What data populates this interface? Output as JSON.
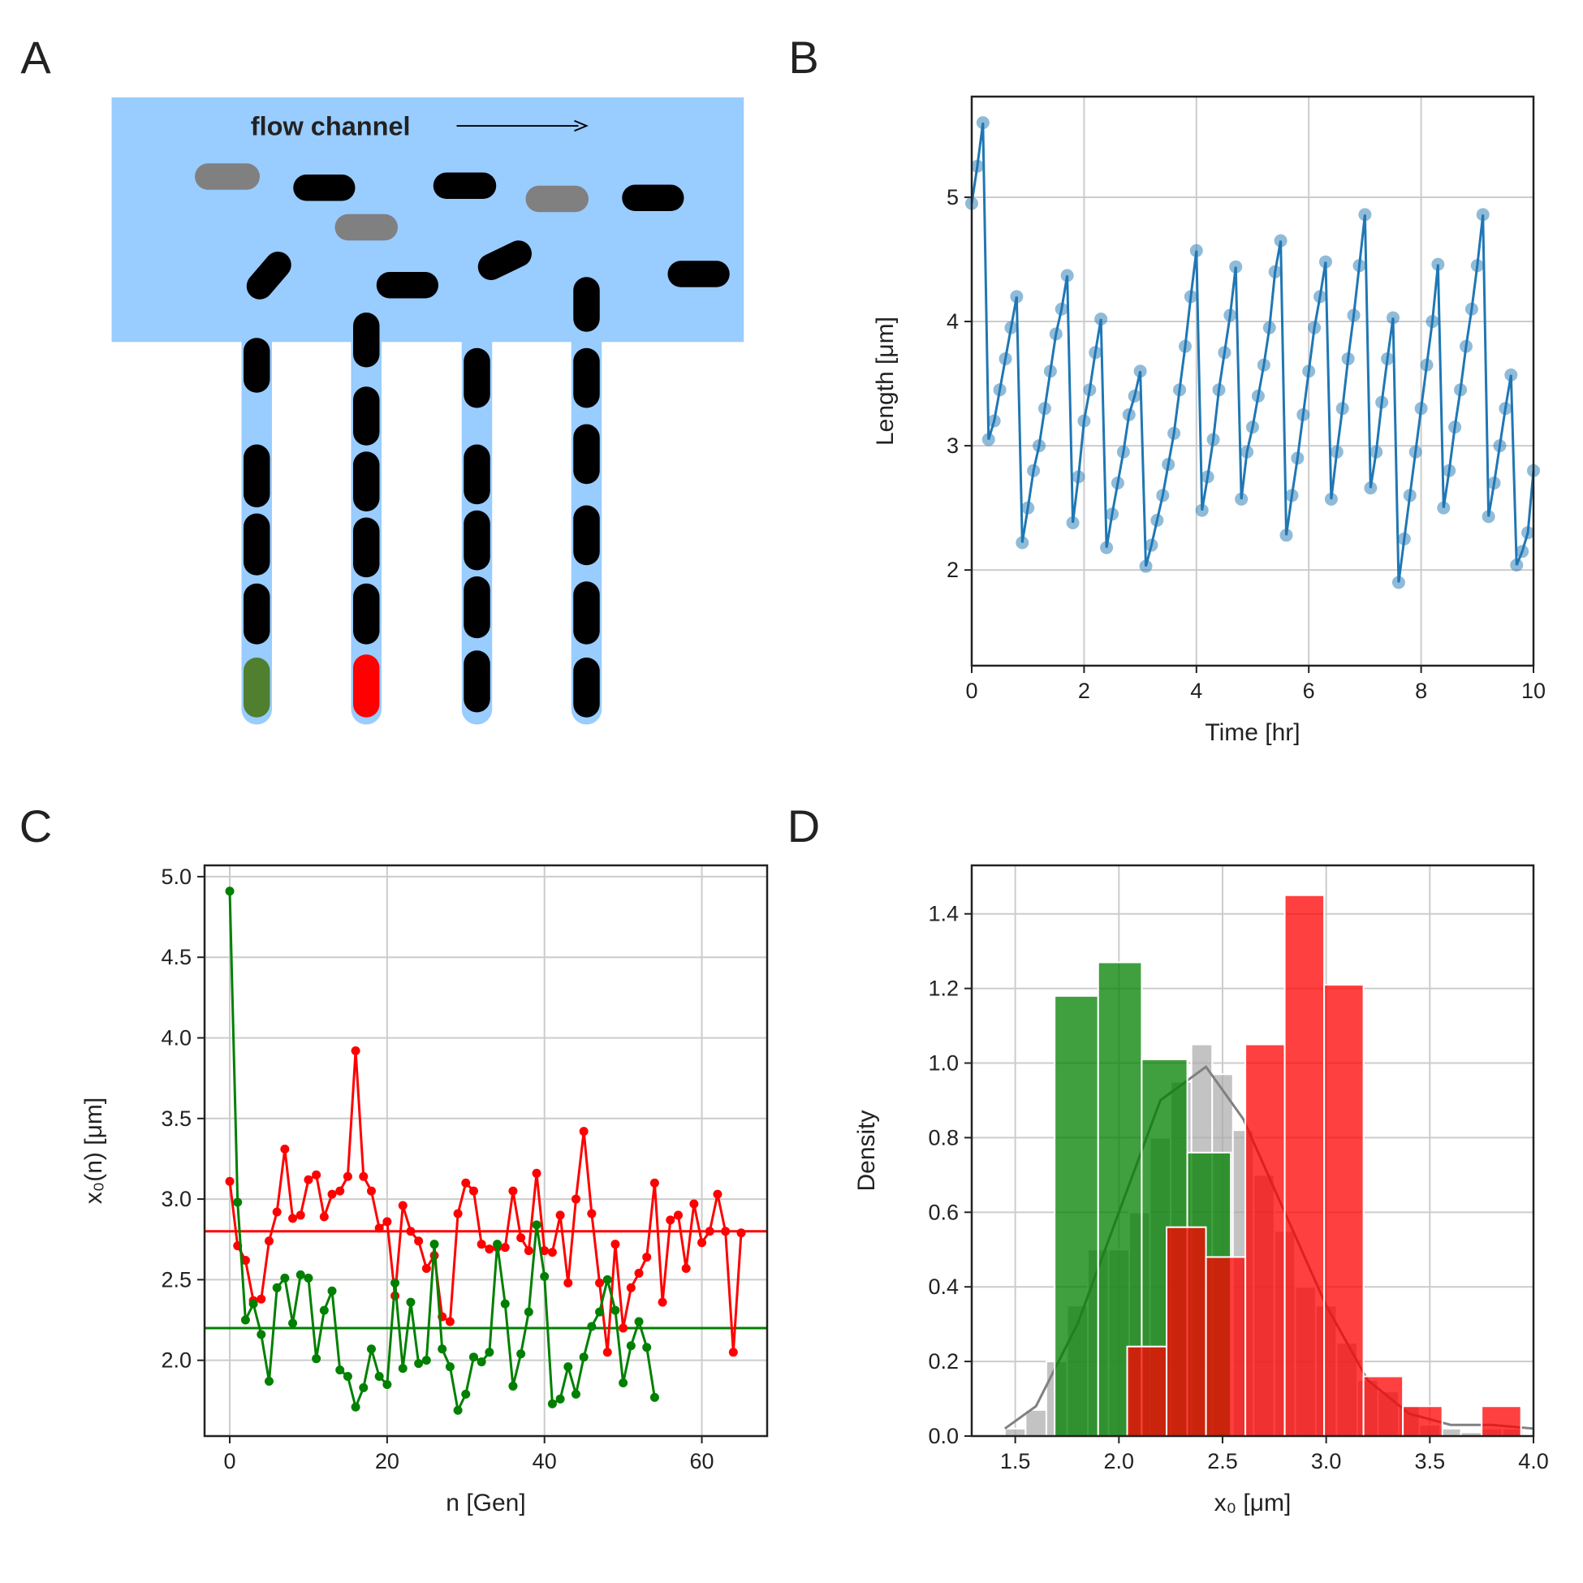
{
  "diagram": {
    "panel": "A",
    "label": "flow channel"
  },
  "chart_data": [
    {
      "type": "line",
      "panel": "B",
      "xlabel": "Time [hr]",
      "ylabel": "Length [μm]",
      "x": [
        0,
        0.1,
        0.2,
        0.3,
        0.4,
        0.5,
        0.6,
        0.7,
        0.8,
        0.9,
        1,
        1.1,
        1.2,
        1.3,
        1.4,
        1.5,
        1.6,
        1.7,
        1.8,
        1.9,
        2,
        2.1,
        2.2,
        2.3,
        2.4,
        2.5,
        2.6,
        2.7,
        2.8,
        2.9,
        3,
        3.1,
        3.2,
        3.3,
        3.4,
        3.5,
        3.6,
        3.7,
        3.8,
        3.9,
        4,
        4.1,
        4.2,
        4.3,
        4.4,
        4.5,
        4.6,
        4.7,
        4.8,
        4.9,
        5,
        5.1,
        5.2,
        5.3,
        5.4,
        5.5,
        5.6,
        5.7,
        5.8,
        5.9,
        6,
        6.1,
        6.2,
        6.3,
        6.4,
        6.5,
        6.6,
        6.7,
        6.8,
        6.9,
        7,
        7.1,
        7.2,
        7.3,
        7.4,
        7.5,
        7.6,
        7.7,
        7.8,
        7.9,
        8,
        8.1,
        8.2,
        8.3,
        8.4,
        8.5,
        8.6,
        8.7,
        8.8,
        8.9,
        9,
        9.1,
        9.2,
        9.3,
        9.4,
        9.5,
        9.6,
        9.7,
        9.8,
        9.9,
        10
      ],
      "series": [
        {
          "color": "#1f77b4",
          "marker_opacity": 0.5,
          "values": [
            4.95,
            5.25,
            5.6,
            3.05,
            3.2,
            3.45,
            3.7,
            3.95,
            4.2,
            2.22,
            2.5,
            2.8,
            3.0,
            3.3,
            3.6,
            3.9,
            4.1,
            4.37,
            2.38,
            2.75,
            3.2,
            3.45,
            3.75,
            4.02,
            2.18,
            2.45,
            2.7,
            2.95,
            3.25,
            3.4,
            3.6,
            2.03,
            2.2,
            2.4,
            2.6,
            2.85,
            3.1,
            3.45,
            3.8,
            4.2,
            4.57,
            2.48,
            2.75,
            3.05,
            3.45,
            3.75,
            4.05,
            4.44,
            2.57,
            2.95,
            3.15,
            3.4,
            3.65,
            3.95,
            4.4,
            4.65,
            2.28,
            2.6,
            2.9,
            3.25,
            3.6,
            3.95,
            4.2,
            4.48,
            2.57,
            2.95,
            3.3,
            3.7,
            4.05,
            4.45,
            4.86,
            2.66,
            2.95,
            3.35,
            3.7,
            4.03,
            1.9,
            2.25,
            2.6,
            2.95,
            3.3,
            3.65,
            4.0,
            4.46,
            2.5,
            2.8,
            3.15,
            3.45,
            3.8,
            4.1,
            4.45,
            4.86,
            2.43,
            2.7,
            3.0,
            3.3,
            3.57,
            2.04,
            2.15,
            2.3,
            2.8
          ]
        }
      ],
      "xlim": [
        0,
        10
      ],
      "ylim": [
        1.23,
        5.81
      ],
      "xticks": [
        0,
        2,
        4,
        6,
        8,
        10
      ],
      "yticks": [
        2,
        3,
        4,
        5
      ],
      "grid": true
    },
    {
      "type": "line",
      "panel": "C",
      "xlabel": "n [Gen]",
      "ylabel": "x₀(n) [μm]",
      "x": [
        0,
        1,
        2,
        3,
        4,
        5,
        6,
        7,
        8,
        9,
        10,
        11,
        12,
        13,
        14,
        15,
        16,
        17,
        18,
        19,
        20,
        21,
        22,
        23,
        24,
        25,
        26,
        27,
        28,
        29,
        30,
        31,
        32,
        33,
        34,
        35,
        36,
        37,
        38,
        39,
        40,
        41,
        42,
        43,
        44,
        45,
        46,
        47,
        48,
        49,
        50,
        51,
        52,
        53,
        54,
        55,
        56,
        57,
        58,
        59,
        60,
        61,
        62,
        63,
        64,
        65
      ],
      "series": [
        {
          "color": "#ff0000",
          "marker_opacity": 1,
          "values": [
            3.11,
            2.71,
            2.62,
            2.37,
            2.38,
            2.74,
            2.92,
            3.31,
            2.88,
            2.9,
            3.12,
            3.15,
            2.89,
            3.03,
            3.05,
            3.14,
            3.92,
            3.14,
            3.05,
            2.82,
            2.86,
            2.4,
            2.96,
            2.8,
            2.74,
            2.57,
            2.65,
            2.27,
            2.24,
            2.91,
            3.1,
            3.05,
            2.72,
            2.69,
            2.7,
            2.7,
            3.05,
            2.76,
            2.68,
            3.16,
            2.68,
            2.67,
            2.9,
            2.48,
            3.0,
            3.42,
            2.91,
            2.48,
            2.05,
            2.72,
            2.2,
            2.45,
            2.54,
            2.64,
            3.1,
            2.36,
            2.87,
            2.9,
            2.57,
            2.97,
            2.73,
            2.8,
            3.03,
            2.8,
            2.05,
            2.79
          ]
        },
        {
          "color": "#008000",
          "marker_opacity": 1,
          "values": [
            4.91,
            2.98,
            2.25,
            2.35,
            2.16,
            1.87,
            2.45,
            2.51,
            2.23,
            2.53,
            2.51,
            2.01,
            2.31,
            2.43,
            1.94,
            1.9,
            1.71,
            1.83,
            2.07,
            1.9,
            1.85,
            2.48,
            1.95,
            2.36,
            1.98,
            2.0,
            2.72,
            2.07,
            1.96,
            1.69,
            1.79,
            2.02,
            1.99,
            2.05,
            2.72,
            2.35,
            1.84,
            2.04,
            2.3,
            2.84,
            2.52,
            1.73,
            1.76,
            1.96,
            1.79,
            2.02,
            2.21,
            2.3,
            2.5,
            2.31,
            1.86,
            2.09,
            2.24,
            2.08,
            1.77,
            null,
            null,
            null,
            null,
            null,
            null,
            null,
            null,
            null,
            null,
            null
          ]
        }
      ],
      "hlines": [
        {
          "value": 2.8,
          "color": "#ff0000"
        },
        {
          "value": 2.2,
          "color": "#008000"
        }
      ],
      "xlim": [
        -3.2,
        68.3
      ],
      "ylim": [
        1.53,
        5.07
      ],
      "xticks": [
        0,
        20,
        40,
        60
      ],
      "yticks": [
        {
          "value": 2,
          "label": "2.0"
        },
        2.5,
        {
          "value": 3,
          "label": "3.0"
        },
        3.5,
        {
          "value": 4,
          "label": "4.0"
        },
        4.5,
        {
          "value": 5,
          "label": "5.0"
        }
      ],
      "grid": true
    },
    {
      "type": "histogram",
      "panel": "D",
      "xlabel": "x₀ [μm]",
      "ylabel": "Density",
      "series": [
        {
          "color": "#a9a9a9",
          "opacity": 0.7,
          "bins": [
            1.45,
            1.55,
            1.65,
            1.75,
            1.85,
            1.95,
            2.05,
            2.15,
            2.25,
            2.35,
            2.45,
            2.55,
            2.65,
            2.75,
            2.85,
            2.95,
            3.05,
            3.15,
            3.25,
            3.35,
            3.45,
            3.55,
            3.65,
            3.75,
            3.85,
            3.95
          ],
          "values": [
            0.02,
            0.07,
            0.2,
            0.35,
            0.5,
            0.5,
            0.6,
            0.8,
            0.95,
            1.05,
            0.97,
            0.82,
            0.7,
            0.55,
            0.4,
            0.35,
            0.25,
            0.15,
            0.12,
            0.08,
            0.03,
            0.02,
            0.01,
            0.02,
            0.02
          ]
        },
        {
          "color": "#008000",
          "opacity": 0.75,
          "bins": [
            1.69,
            1.9,
            2.11,
            2.33,
            2.54
          ],
          "values": [
            1.18,
            1.27,
            1.01,
            0.76
          ]
        },
        {
          "color": "#ff0000",
          "opacity": 0.75,
          "bins": [
            2.04,
            2.23,
            2.42,
            2.61,
            2.8,
            2.99,
            3.18,
            3.37,
            3.56,
            3.75,
            3.94
          ],
          "values": [
            0.24,
            0.56,
            0.48,
            1.05,
            1.45,
            1.21,
            0.16,
            0.08,
            0,
            0.08
          ]
        }
      ],
      "kde": {
        "color": "#808080",
        "x": [
          1.45,
          1.6,
          1.8,
          2.0,
          2.2,
          2.42,
          2.6,
          2.8,
          3.0,
          3.2,
          3.4,
          3.6,
          3.8,
          4.0
        ],
        "values": [
          0.02,
          0.08,
          0.3,
          0.6,
          0.9,
          0.99,
          0.85,
          0.6,
          0.35,
          0.15,
          0.06,
          0.03,
          0.03,
          0.02
        ]
      },
      "xlim": [
        1.29,
        4.0
      ],
      "ylim": [
        0,
        1.53
      ],
      "xticks": [
        1.5,
        {
          "value": 2,
          "label": "2.0"
        },
        2.5,
        {
          "value": 3,
          "label": "3.0"
        },
        3.5,
        {
          "value": 4,
          "label": "4.0"
        }
      ],
      "yticks": [
        {
          "value": 0,
          "label": "0.0"
        },
        0.2,
        0.4,
        0.6,
        0.8,
        {
          "value": 1,
          "label": "1.0"
        },
        1.2,
        1.4
      ],
      "grid": true
    }
  ]
}
